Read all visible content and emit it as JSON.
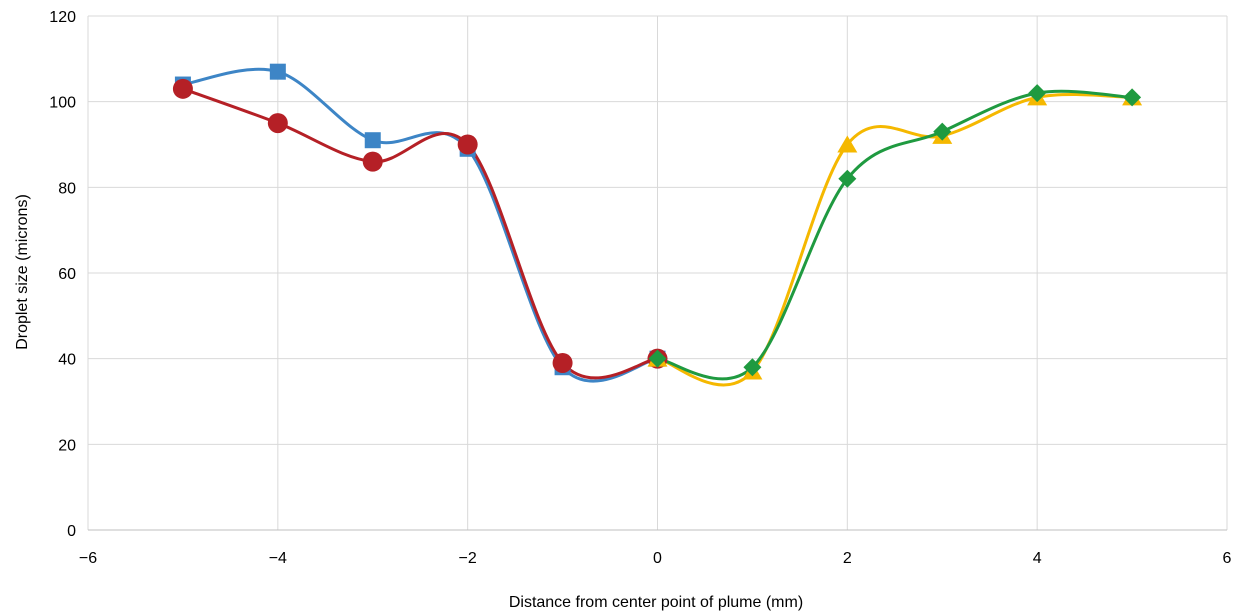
{
  "chart_data": {
    "type": "scatter",
    "title": "",
    "xlabel": "Distance from center point of plume (mm)",
    "ylabel": "Droplet size (microns)",
    "xlim": [
      -6,
      6
    ],
    "ylim": [
      0,
      120
    ],
    "x_ticks": [
      -6,
      -4,
      -2,
      0,
      2,
      4,
      6
    ],
    "x_tick_labels": [
      "−6",
      "−4",
      "−2",
      "0",
      "2",
      "4",
      "6"
    ],
    "y_ticks": [
      0,
      20,
      40,
      60,
      80,
      100,
      120
    ],
    "y_tick_labels": [
      "0",
      "20",
      "40",
      "60",
      "80",
      "100",
      "120"
    ],
    "grid": true,
    "smooth_lines": true,
    "series": [
      {
        "color": "#3d85c6",
        "marker": "square",
        "points": [
          [
            -5,
            104
          ],
          [
            -4,
            107
          ],
          [
            -3,
            91
          ],
          [
            -2,
            89
          ],
          [
            -1,
            38
          ],
          [
            0,
            40
          ]
        ]
      },
      {
        "color": "#b52026",
        "marker": "circle",
        "points": [
          [
            -5,
            103
          ],
          [
            -4,
            95
          ],
          [
            -3,
            86
          ],
          [
            -2,
            90
          ],
          [
            -1,
            39
          ],
          [
            0,
            40
          ]
        ]
      },
      {
        "color": "#f5b800",
        "marker": "triangle",
        "points": [
          [
            0,
            40
          ],
          [
            1,
            37
          ],
          [
            2,
            90
          ],
          [
            3,
            92
          ],
          [
            4,
            101
          ],
          [
            5,
            101
          ]
        ]
      },
      {
        "color": "#1f9a40",
        "marker": "diamond",
        "points": [
          [
            0,
            40
          ],
          [
            1,
            38
          ],
          [
            2,
            82
          ],
          [
            3,
            93
          ],
          [
            4,
            102
          ],
          [
            5,
            101
          ]
        ]
      }
    ]
  }
}
